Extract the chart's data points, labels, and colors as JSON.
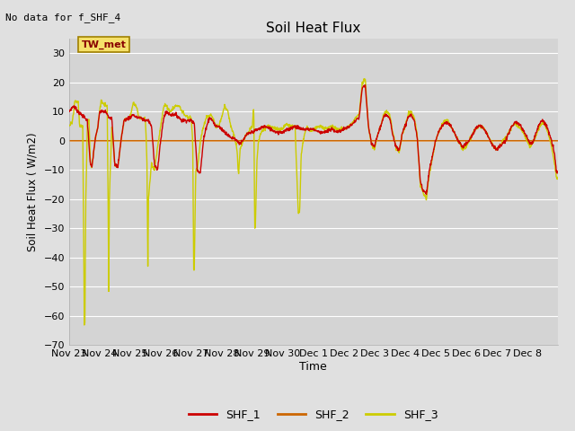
{
  "title": "Soil Heat Flux",
  "ylabel": "Soil Heat Flux ( W/m2)",
  "xlabel": "Time",
  "no_data_text": "No data for f_SHF_4",
  "station_label": "TW_met",
  "ylim": [
    -70,
    35
  ],
  "yticks": [
    -70,
    -60,
    -50,
    -40,
    -30,
    -20,
    -10,
    0,
    10,
    20,
    30
  ],
  "fig_bg_color": "#e0e0e0",
  "plot_bg_color": "#d4d4d4",
  "grid_color": "#ffffff",
  "shf1_color": "#cc0000",
  "shf2_color": "#cc6600",
  "shf3_color": "#cccc00",
  "legend_entries": [
    "SHF_1",
    "SHF_2",
    "SHF_3"
  ],
  "x_tick_labels": [
    "Nov 23",
    "Nov 24",
    "Nov 25",
    "Nov 26",
    "Nov 27",
    "Nov 28",
    "Nov 29",
    "Nov 30",
    "Dec 1",
    "Dec 2",
    "Dec 3",
    "Dec 4",
    "Dec 5",
    "Dec 6",
    "Dec 7",
    "Dec 8"
  ],
  "station_box_facecolor": "#f5e06a",
  "station_box_edgecolor": "#a08000",
  "station_text_color": "#880000"
}
